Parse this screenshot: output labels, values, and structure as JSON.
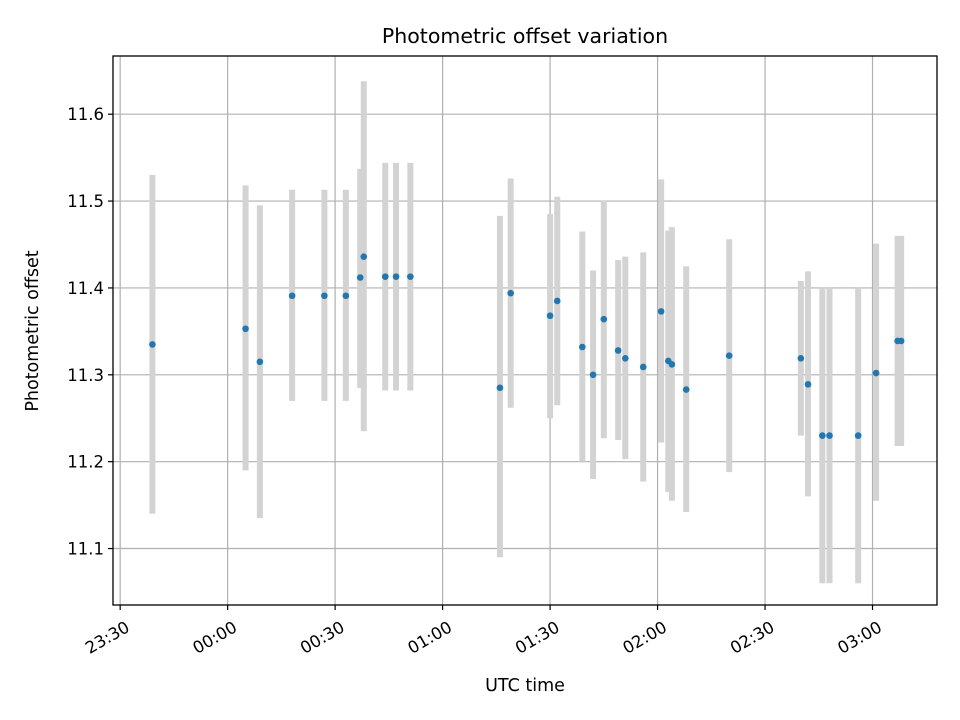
{
  "chart_data": {
    "type": "scatter",
    "title": "Photometric offset variation",
    "xlabel": "UTC time",
    "ylabel": "Photometric offset",
    "x_unit": "UTC time (HH:MM)",
    "xlim": [
      "23:28",
      "03:18"
    ],
    "ylim": [
      11.035,
      11.667
    ],
    "grid": true,
    "x_ticks": [
      "23:30",
      "00:00",
      "00:30",
      "01:00",
      "01:30",
      "02:00",
      "02:30",
      "03:00"
    ],
    "y_ticks": [
      11.1,
      11.2,
      11.3,
      11.4,
      11.5,
      11.6
    ],
    "colors": {
      "points": "#1f77b4",
      "error_bars": "#d3d3d3",
      "grid": "#b0b0b0"
    },
    "points": [
      {
        "x": "23:39",
        "y": 11.335,
        "lo": 11.14,
        "hi": 11.53
      },
      {
        "x": "00:05",
        "y": 11.353,
        "lo": 11.19,
        "hi": 11.518
      },
      {
        "x": "00:09",
        "y": 11.315,
        "lo": 11.135,
        "hi": 11.495
      },
      {
        "x": "00:18",
        "y": 11.391,
        "lo": 11.27,
        "hi": 11.513
      },
      {
        "x": "00:27",
        "y": 11.391,
        "lo": 11.27,
        "hi": 11.513
      },
      {
        "x": "00:33",
        "y": 11.391,
        "lo": 11.27,
        "hi": 11.513
      },
      {
        "x": "00:37",
        "y": 11.412,
        "lo": 11.285,
        "hi": 11.537
      },
      {
        "x": "00:38",
        "y": 11.436,
        "lo": 11.235,
        "hi": 11.638
      },
      {
        "x": "00:44",
        "y": 11.413,
        "lo": 11.282,
        "hi": 11.544
      },
      {
        "x": "00:47",
        "y": 11.413,
        "lo": 11.282,
        "hi": 11.544
      },
      {
        "x": "00:51",
        "y": 11.413,
        "lo": 11.282,
        "hi": 11.544
      },
      {
        "x": "01:16",
        "y": 11.285,
        "lo": 11.09,
        "hi": 11.483
      },
      {
        "x": "01:19",
        "y": 11.394,
        "lo": 11.262,
        "hi": 11.526
      },
      {
        "x": "01:30",
        "y": 11.368,
        "lo": 11.25,
        "hi": 11.485
      },
      {
        "x": "01:32",
        "y": 11.385,
        "lo": 11.265,
        "hi": 11.505
      },
      {
        "x": "01:39",
        "y": 11.332,
        "lo": 11.2,
        "hi": 11.465
      },
      {
        "x": "01:42",
        "y": 11.3,
        "lo": 11.18,
        "hi": 11.42
      },
      {
        "x": "01:45",
        "y": 11.364,
        "lo": 11.227,
        "hi": 11.501
      },
      {
        "x": "01:49",
        "y": 11.328,
        "lo": 11.225,
        "hi": 11.432
      },
      {
        "x": "01:51",
        "y": 11.319,
        "lo": 11.203,
        "hi": 11.436
      },
      {
        "x": "01:56",
        "y": 11.309,
        "lo": 11.177,
        "hi": 11.441
      },
      {
        "x": "02:01",
        "y": 11.373,
        "lo": 11.222,
        "hi": 11.525
      },
      {
        "x": "02:03",
        "y": 11.316,
        "lo": 11.165,
        "hi": 11.466
      },
      {
        "x": "02:04",
        "y": 11.312,
        "lo": 11.155,
        "hi": 11.47
      },
      {
        "x": "02:08",
        "y": 11.283,
        "lo": 11.142,
        "hi": 11.425
      },
      {
        "x": "02:20",
        "y": 11.322,
        "lo": 11.188,
        "hi": 11.456
      },
      {
        "x": "02:40",
        "y": 11.319,
        "lo": 11.23,
        "hi": 11.408
      },
      {
        "x": "02:42",
        "y": 11.289,
        "lo": 11.16,
        "hi": 11.419
      },
      {
        "x": "02:46",
        "y": 11.23,
        "lo": 11.06,
        "hi": 11.4
      },
      {
        "x": "02:48",
        "y": 11.23,
        "lo": 11.06,
        "hi": 11.4
      },
      {
        "x": "02:56",
        "y": 11.23,
        "lo": 11.06,
        "hi": 11.4
      },
      {
        "x": "03:01",
        "y": 11.302,
        "lo": 11.155,
        "hi": 11.451
      },
      {
        "x": "03:07",
        "y": 11.339,
        "lo": 11.218,
        "hi": 11.46
      },
      {
        "x": "03:08",
        "y": 11.339,
        "lo": 11.218,
        "hi": 11.46
      }
    ]
  }
}
